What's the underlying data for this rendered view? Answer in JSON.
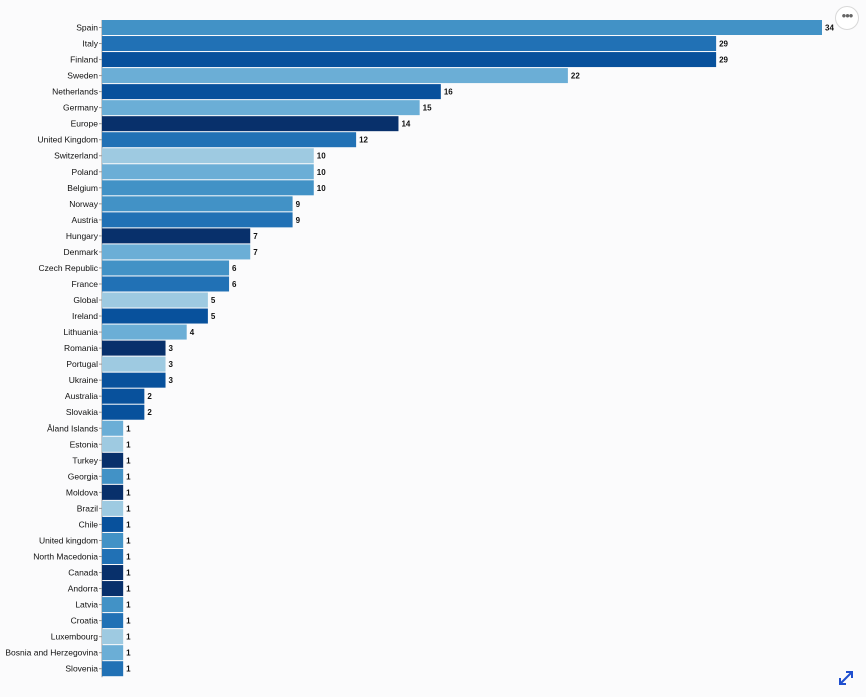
{
  "chart_data": {
    "type": "bar",
    "orientation": "horizontal",
    "categories": [
      "Spain",
      "Italy",
      "Finland",
      "Sweden",
      "Netherlands",
      "Germany",
      "Europe",
      "United Kingdom",
      "Switzerland",
      "Poland",
      "Belgium",
      "Norway",
      "Austria",
      "Hungary",
      "Denmark",
      "Czech Republic",
      "France",
      "Global",
      "Ireland",
      "Lithuania",
      "Romania",
      "Portugal",
      "Ukraine",
      "Australia",
      "Slovakia",
      "Åland Islands",
      "Estonia",
      "Turkey",
      "Georgia",
      "Moldova",
      "Brazil",
      "Chile",
      "United kingdom",
      "North Macedonia",
      "Canada",
      "Andorra",
      "Latvia",
      "Croatia",
      "Luxembourg",
      "Bosnia and Herzegovina",
      "Slovenia"
    ],
    "values": [
      34,
      29,
      29,
      22,
      16,
      15,
      14,
      12,
      10,
      10,
      10,
      9,
      9,
      7,
      7,
      6,
      6,
      5,
      5,
      4,
      3,
      3,
      3,
      2,
      2,
      1,
      1,
      1,
      1,
      1,
      1,
      1,
      1,
      1,
      1,
      1,
      1,
      1,
      1,
      1,
      1
    ],
    "colors": [
      "#4292c6",
      "#2171b5",
      "#08519c",
      "#6baed6",
      "#08519c",
      "#6baed6",
      "#08306b",
      "#2171b5",
      "#9ecae1",
      "#6baed6",
      "#4292c6",
      "#4292c6",
      "#2171b5",
      "#08306b",
      "#6baed6",
      "#4292c6",
      "#2171b5",
      "#9ecae1",
      "#08519c",
      "#6baed6",
      "#08306b",
      "#9ecae1",
      "#08519c",
      "#08519c",
      "#08519c",
      "#6baed6",
      "#9ecae1",
      "#08306b",
      "#4292c6",
      "#08306b",
      "#9ecae1",
      "#08519c",
      "#4292c6",
      "#2171b5",
      "#08306b",
      "#08306b",
      "#4292c6",
      "#2171b5",
      "#9ecae1",
      "#6baed6",
      "#2171b5"
    ],
    "xlim": [
      0,
      34
    ],
    "grid": false,
    "legend": "none"
  },
  "ui": {
    "more_icon": "ellipsis-icon",
    "more_glyph": "•••",
    "expand_icon": "expand-arrows-icon",
    "accent_color": "#1f4fcf"
  }
}
